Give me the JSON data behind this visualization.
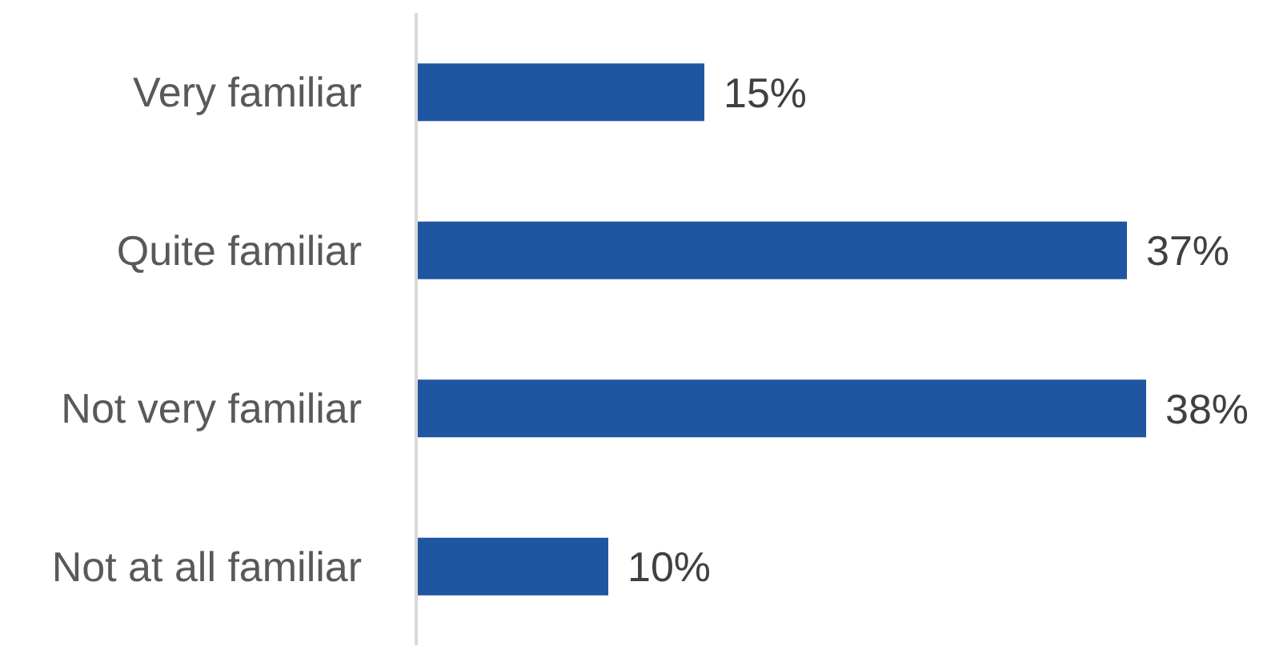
{
  "chart_data": {
    "type": "bar",
    "orientation": "horizontal",
    "categories": [
      "Very familiar",
      "Quite familiar",
      "Not very familiar",
      "Not at all familiar"
    ],
    "values": [
      15,
      37,
      38,
      10
    ],
    "value_labels": [
      "15%",
      "37%",
      "38%",
      "10%"
    ],
    "color": "#1f56a2",
    "grid": false,
    "legend": false
  }
}
